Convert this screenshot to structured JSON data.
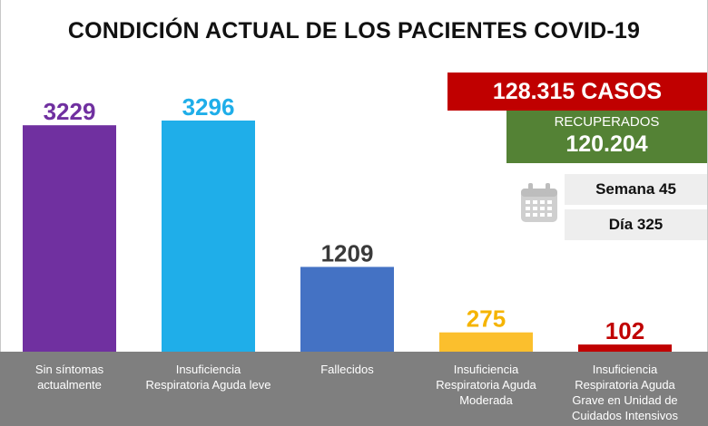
{
  "title": "CONDICIÓN ACTUAL DE LOS PACIENTES COVID-19",
  "cases": "128.315 CASOS",
  "recovered_label": "RECUPERADOS",
  "recovered_value": "120.204",
  "week": "Semana 45",
  "day": "Día 325",
  "icon": "calendar-icon",
  "chart_data": {
    "type": "bar",
    "title": "CONDICIÓN ACTUAL DE LOS PACIENTES COVID-19",
    "categories": [
      [
        "Sin síntomas",
        "actualmente"
      ],
      [
        "Insuficiencia",
        "Respiratoria Aguda leve"
      ],
      [
        "Fallecidos"
      ],
      [
        "Insuficiencia",
        "Respiratoria Aguda",
        "Moderada"
      ],
      [
        "Insuficiencia",
        "Respiratoria Aguda",
        "Grave en Unidad de",
        "Cuidados Intensivos"
      ]
    ],
    "values": [
      3229,
      3296,
      1209,
      275,
      102
    ],
    "labels": [
      "3229",
      "3296",
      "1209",
      "275",
      "102"
    ],
    "colors": [
      "#7030a0",
      "#1faee9",
      "#4472c4",
      "#fbbf2d",
      "#c00000"
    ],
    "label_colors": [
      "#7030a0",
      "#1faee9",
      "#3a3a3a",
      "#f5b400",
      "#c00000"
    ],
    "ylim": [
      0,
      3296
    ],
    "grid": false,
    "legend": "none"
  }
}
